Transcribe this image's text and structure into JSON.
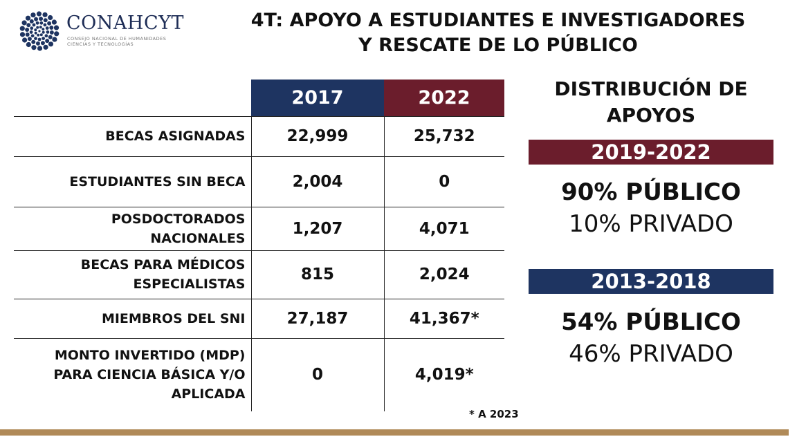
{
  "logo": {
    "name": "CONAHCYT",
    "subtitle_line1": "CONSEJO NACIONAL DE HUMANIDADES",
    "subtitle_line2": "CIENCIAS Y TECNOLOGÍAS"
  },
  "title_line1": "4T: APOYO A ESTUDIANTES E INVESTIGADORES",
  "title_line2": "Y RESCATE DE LO PÚBLICO",
  "table": {
    "headers": [
      "2017",
      "2022"
    ],
    "rows": [
      {
        "label": "BECAS ASIGNADAS",
        "v2017": "22,999",
        "v2022": "25,732"
      },
      {
        "label": "ESTUDIANTES SIN BECA",
        "v2017": "2,004",
        "v2022": "0"
      },
      {
        "label": "POSDOCTORADOS NACIONALES",
        "v2017": "1,207",
        "v2022": "4,071"
      },
      {
        "label": "BECAS PARA MÉDICOS ESPECIALISTAS",
        "v2017": "815",
        "v2022": "2,024"
      },
      {
        "label": "MIEMBROS DEL SNI",
        "v2017": "27,187",
        "v2022": "41,367*"
      },
      {
        "label": "MONTO INVERTIDO (MDP) PARA CIENCIA BÁSICA Y/O APLICADA",
        "v2017": "0",
        "v2022": "4,019*"
      }
    ]
  },
  "footnote": "* A 2023",
  "distribution": {
    "title": "DISTRIBUCIÓN DE APOYOS",
    "periods": [
      {
        "label": "2019-2022",
        "publico": "90% PÚBLICO",
        "privado": "10% PRIVADO"
      },
      {
        "label": "2013-2018",
        "publico": "54% PÚBLICO",
        "privado": "46% PRIVADO"
      }
    ]
  },
  "colors": {
    "navy": "#1e3461",
    "maroon": "#6b1d2c",
    "gold": "#b08a58"
  }
}
